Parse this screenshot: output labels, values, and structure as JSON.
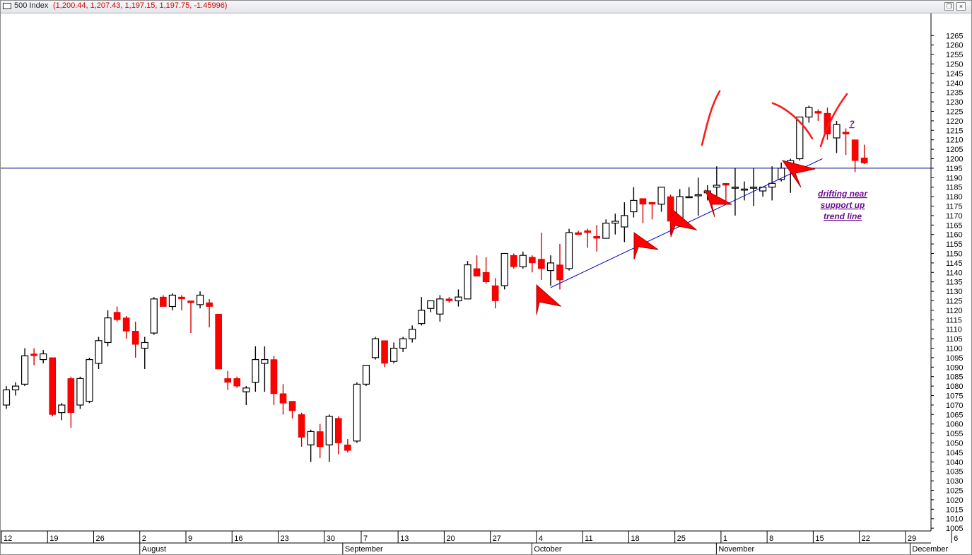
{
  "window": {
    "title_name": "500 Index",
    "title_ohlc": "(1,200.44, 1,207.43, 1,197.15, 1,197.75, -1.45996)",
    "restore_icon": "restore-icon",
    "close_icon": "close-icon",
    "restore_glyph": "❐",
    "close_glyph": "×"
  },
  "chart_data": {
    "type": "candlestick",
    "title": "500 Index",
    "ylim": [
      1000,
      1270
    ],
    "ytick_step": 5,
    "grid": false,
    "colors": {
      "up_body": "#ffffff",
      "up_line": "#000000",
      "down_body": "#ff0000",
      "down_line": "#d40000",
      "support_line": "#000080",
      "trend_line": "#0000c8",
      "annotation": "#ff0000",
      "note": "#6a0d91"
    },
    "support_level": 1195,
    "trend_line": {
      "from": {
        "date": "Oct 4",
        "value": 1132
      },
      "to": {
        "date": "Nov 12",
        "value": 1200
      }
    },
    "x_labels": [
      {
        "i": 0,
        "label": "12"
      },
      {
        "i": 5,
        "label": "19"
      },
      {
        "i": 10,
        "label": "26"
      },
      {
        "i": 15,
        "label": "2"
      },
      {
        "i": 20,
        "label": "9"
      },
      {
        "i": 25,
        "label": "16"
      },
      {
        "i": 30,
        "label": "23"
      },
      {
        "i": 35,
        "label": "30"
      },
      {
        "i": 39,
        "label": "7"
      },
      {
        "i": 43,
        "label": "13"
      },
      {
        "i": 48,
        "label": "20"
      },
      {
        "i": 53,
        "label": "27"
      },
      {
        "i": 58,
        "label": "4"
      },
      {
        "i": 63,
        "label": "11"
      },
      {
        "i": 68,
        "label": "18"
      },
      {
        "i": 73,
        "label": "25"
      },
      {
        "i": 78,
        "label": "1"
      },
      {
        "i": 83,
        "label": "8"
      },
      {
        "i": 88,
        "label": "15"
      },
      {
        "i": 93,
        "label": "22"
      },
      {
        "i": 98,
        "label": "29"
      },
      {
        "i": 103,
        "label": "6"
      }
    ],
    "months": [
      {
        "i": 15,
        "label": "August"
      },
      {
        "i": 37,
        "label": "September"
      },
      {
        "i": 57.5,
        "label": "October"
      },
      {
        "i": 77.5,
        "label": "November"
      },
      {
        "i": 98.5,
        "label": "December"
      }
    ],
    "series": [
      {
        "date": "Jul 12",
        "open": 1070,
        "high": 1080,
        "low": 1068,
        "close": 1078
      },
      {
        "date": "Jul 13",
        "open": 1078,
        "high": 1082,
        "low": 1075,
        "close": 1080
      },
      {
        "date": "Jul 14",
        "open": 1081,
        "high": 1100,
        "low": 1080,
        "close": 1096
      },
      {
        "date": "Jul 15",
        "open": 1097,
        "high": 1100,
        "low": 1091,
        "close": 1096
      },
      {
        "date": "Jul 16",
        "open": 1094,
        "high": 1099,
        "low": 1092,
        "close": 1097
      },
      {
        "date": "Jul 19",
        "open": 1095,
        "high": 1095,
        "low": 1064,
        "close": 1065
      },
      {
        "date": "Jul 20",
        "open": 1066,
        "high": 1071,
        "low": 1062,
        "close": 1070
      },
      {
        "date": "Jul 21",
        "open": 1084,
        "high": 1085,
        "low": 1058,
        "close": 1066
      },
      {
        "date": "Jul 22",
        "open": 1070,
        "high": 1085,
        "low": 1068,
        "close": 1084
      },
      {
        "date": "Jul 23",
        "open": 1072,
        "high": 1095,
        "low": 1071,
        "close": 1094
      },
      {
        "date": "Jul 26",
        "open": 1092,
        "high": 1106,
        "low": 1089,
        "close": 1104
      },
      {
        "date": "Jul 27",
        "open": 1103,
        "high": 1120,
        "low": 1101,
        "close": 1116
      },
      {
        "date": "Jul 28",
        "open": 1119,
        "high": 1122,
        "low": 1114,
        "close": 1115
      },
      {
        "date": "Jul 29",
        "open": 1116,
        "high": 1117,
        "low": 1105,
        "close": 1109
      },
      {
        "date": "Jul 30",
        "open": 1109,
        "high": 1114,
        "low": 1095,
        "close": 1102
      },
      {
        "date": "Aug 2",
        "open": 1100,
        "high": 1106,
        "low": 1089,
        "close": 1103
      },
      {
        "date": "Aug 3",
        "open": 1108,
        "high": 1127,
        "low": 1107,
        "close": 1126
      },
      {
        "date": "Aug 4",
        "open": 1127,
        "high": 1128,
        "low": 1122,
        "close": 1122
      },
      {
        "date": "Aug 5",
        "open": 1122,
        "high": 1129,
        "low": 1120,
        "close": 1128
      },
      {
        "date": "Aug 6",
        "open": 1127,
        "high": 1128,
        "low": 1120,
        "close": 1126
      },
      {
        "date": "Aug 9",
        "open": 1125,
        "high": 1125,
        "low": 1108,
        "close": 1124
      },
      {
        "date": "Aug 10",
        "open": 1123,
        "high": 1130,
        "low": 1121,
        "close": 1128
      },
      {
        "date": "Aug 11",
        "open": 1124,
        "high": 1126,
        "low": 1111,
        "close": 1122
      },
      {
        "date": "Aug 12",
        "open": 1118,
        "high": 1118,
        "low": 1089,
        "close": 1089
      },
      {
        "date": "Aug 13",
        "open": 1084,
        "high": 1088,
        "low": 1078,
        "close": 1082
      },
      {
        "date": "Aug 16",
        "open": 1084,
        "high": 1085,
        "low": 1079,
        "close": 1080
      },
      {
        "date": "Aug 17",
        "open": 1077,
        "high": 1080,
        "low": 1070,
        "close": 1079
      },
      {
        "date": "Aug 18",
        "open": 1082,
        "high": 1101,
        "low": 1077,
        "close": 1094
      },
      {
        "date": "Aug 19",
        "open": 1092,
        "high": 1101,
        "low": 1077,
        "close": 1094
      },
      {
        "date": "Aug 20",
        "open": 1094,
        "high": 1096,
        "low": 1070,
        "close": 1076
      },
      {
        "date": "Aug 23",
        "open": 1076,
        "high": 1081,
        "low": 1065,
        "close": 1071
      },
      {
        "date": "Aug 24",
        "open": 1072,
        "high": 1072,
        "low": 1063,
        "close": 1067
      },
      {
        "date": "Aug 25",
        "open": 1065,
        "high": 1066,
        "low": 1048,
        "close": 1053
      },
      {
        "date": "Aug 26",
        "open": 1049,
        "high": 1057,
        "low": 1040,
        "close": 1056
      },
      {
        "date": "Aug 27",
        "open": 1056,
        "high": 1060,
        "low": 1042,
        "close": 1048
      },
      {
        "date": "Aug 30",
        "open": 1049,
        "high": 1065,
        "low": 1040,
        "close": 1064
      },
      {
        "date": "Aug 31",
        "open": 1063,
        "high": 1064,
        "low": 1044,
        "close": 1050
      },
      {
        "date": "Sep 1",
        "open": 1049,
        "high": 1052,
        "low": 1045,
        "close": 1046
      },
      {
        "date": "Sep 2",
        "open": 1051,
        "high": 1082,
        "low": 1050,
        "close": 1081
      },
      {
        "date": "Sep 3",
        "open": 1081,
        "high": 1091,
        "low": 1080,
        "close": 1091
      },
      {
        "date": "Sep 7",
        "open": 1095,
        "high": 1106,
        "low": 1094,
        "close": 1105
      },
      {
        "date": "Sep 8",
        "open": 1104,
        "high": 1104,
        "low": 1090,
        "close": 1092
      },
      {
        "date": "Sep 9",
        "open": 1093,
        "high": 1103,
        "low": 1092,
        "close": 1100
      },
      {
        "date": "Sep 10",
        "open": 1100,
        "high": 1106,
        "low": 1098,
        "close": 1105
      },
      {
        "date": "Sep 13",
        "open": 1105,
        "high": 1112,
        "low": 1103,
        "close": 1110
      },
      {
        "date": "Sep 14",
        "open": 1113,
        "high": 1127,
        "low": 1112,
        "close": 1120
      },
      {
        "date": "Sep 15",
        "open": 1121,
        "high": 1125,
        "low": 1119,
        "close": 1125
      },
      {
        "date": "Sep 16",
        "open": 1118,
        "high": 1128,
        "low": 1114,
        "close": 1126
      },
      {
        "date": "Sep 17",
        "open": 1126,
        "high": 1127,
        "low": 1124,
        "close": 1125
      },
      {
        "date": "Sep 20",
        "open": 1125,
        "high": 1131,
        "low": 1122,
        "close": 1127
      },
      {
        "date": "Sep 21",
        "open": 1126,
        "high": 1146,
        "low": 1126,
        "close": 1144
      },
      {
        "date": "Sep 22",
        "open": 1142,
        "high": 1149,
        "low": 1138,
        "close": 1138
      },
      {
        "date": "Sep 23",
        "open": 1140,
        "high": 1148,
        "low": 1134,
        "close": 1135
      },
      {
        "date": "Sep 24",
        "open": 1133,
        "high": 1137,
        "low": 1121,
        "close": 1125
      },
      {
        "date": "Sep 27",
        "open": 1133,
        "high": 1150,
        "low": 1131,
        "close": 1150
      },
      {
        "date": "Sep 28",
        "open": 1149,
        "high": 1150,
        "low": 1142,
        "close": 1143
      },
      {
        "date": "Sep 29",
        "open": 1143,
        "high": 1151,
        "low": 1142,
        "close": 1149
      },
      {
        "date": "Sep 30",
        "open": 1148,
        "high": 1149,
        "low": 1140,
        "close": 1145
      },
      {
        "date": "Oct 1",
        "open": 1147,
        "high": 1161,
        "low": 1136,
        "close": 1142
      },
      {
        "date": "Oct 4",
        "open": 1141,
        "high": 1149,
        "low": 1133,
        "close": 1145
      },
      {
        "date": "Oct 5",
        "open": 1144,
        "high": 1155,
        "low": 1131,
        "close": 1136
      },
      {
        "date": "Oct 6",
        "open": 1142,
        "high": 1163,
        "low": 1141,
        "close": 1161
      },
      {
        "date": "Oct 7",
        "open": 1161,
        "high": 1162,
        "low": 1160,
        "close": 1160
      },
      {
        "date": "Oct 8",
        "open": 1162,
        "high": 1163,
        "low": 1153,
        "close": 1161
      },
      {
        "date": "Oct 11",
        "open": 1159,
        "high": 1165,
        "low": 1151,
        "close": 1158
      },
      {
        "date": "Oct 12",
        "open": 1158,
        "high": 1168,
        "low": 1158,
        "close": 1166
      },
      {
        "date": "Oct 13",
        "open": 1166,
        "high": 1171,
        "low": 1160,
        "close": 1167
      },
      {
        "date": "Oct 14",
        "open": 1164,
        "high": 1177,
        "low": 1156,
        "close": 1170
      },
      {
        "date": "Oct 15",
        "open": 1172,
        "high": 1185,
        "low": 1169,
        "close": 1178
      },
      {
        "date": "Oct 18",
        "open": 1179,
        "high": 1178,
        "low": 1166,
        "close": 1176
      },
      {
        "date": "Oct 19",
        "open": 1177,
        "high": 1176,
        "low": 1168,
        "close": 1176
      },
      {
        "date": "Oct 20",
        "open": 1176,
        "high": 1184,
        "low": 1172,
        "close": 1185
      },
      {
        "date": "Oct 21",
        "open": 1180,
        "high": 1181,
        "low": 1160,
        "close": 1167
      },
      {
        "date": "Oct 22",
        "open": 1168,
        "high": 1184,
        "low": 1167,
        "close": 1180
      },
      {
        "date": "Oct 25",
        "open": 1180,
        "high": 1185,
        "low": 1180,
        "close": 1180
      },
      {
        "date": "Oct 26",
        "open": 1181,
        "high": 1190,
        "low": 1170,
        "close": 1181
      },
      {
        "date": "Oct 27",
        "open": 1182,
        "high": 1186,
        "low": 1178,
        "close": 1183
      },
      {
        "date": "Oct 28",
        "open": 1185,
        "high": 1196,
        "low": 1176,
        "close": 1186
      },
      {
        "date": "Oct 29",
        "open": 1187,
        "high": 1186,
        "low": 1177,
        "close": 1186
      },
      {
        "date": "Nov 1",
        "open": 1185,
        "high": 1195,
        "low": 1170,
        "close": 1185
      },
      {
        "date": "Nov 2",
        "open": 1184,
        "high": 1188,
        "low": 1178,
        "close": 1184
      },
      {
        "date": "Nov 3",
        "open": 1185,
        "high": 1195,
        "low": 1175,
        "close": 1185
      },
      {
        "date": "Nov 4",
        "open": 1183,
        "high": 1185,
        "low": 1180,
        "close": 1185
      },
      {
        "date": "Nov 5",
        "open": 1185,
        "high": 1196,
        "low": 1178,
        "close": 1187
      },
      {
        "date": "Nov 8",
        "open": 1189,
        "high": 1198,
        "low": 1188,
        "close": 1195
      },
      {
        "date": "Nov 9",
        "open": 1196,
        "high": 1200,
        "low": 1182,
        "close": 1199
      },
      {
        "date": "Nov 10",
        "open": 1200,
        "high": 1222,
        "low": 1199,
        "close": 1222
      },
      {
        "date": "Nov 11",
        "open": 1222,
        "high": 1228,
        "low": 1219,
        "close": 1227
      },
      {
        "date": "Nov 12",
        "open": 1225,
        "high": 1226,
        "low": 1220,
        "close": 1224
      },
      {
        "date": "Nov 15",
        "open": 1224,
        "high": 1227,
        "low": 1210,
        "close": 1213
      },
      {
        "date": "Nov 16",
        "open": 1211,
        "high": 1220,
        "low": 1203,
        "close": 1218
      },
      {
        "date": "Nov 17",
        "open": 1214,
        "high": 1216,
        "low": 1202,
        "close": 1213
      },
      {
        "date": "Nov 18",
        "open": 1210,
        "high": 1210,
        "low": 1193,
        "close": 1199
      },
      {
        "date": "Nov 19",
        "open": 1200.44,
        "high": 1207.43,
        "low": 1197.15,
        "close": 1197.75
      }
    ],
    "annotations": [
      {
        "text": "drifting near",
        "date": "Nov 18",
        "value": 1177
      },
      {
        "text": "support up",
        "date": "Nov 18",
        "value": 1171
      },
      {
        "text": "trend line",
        "date": "Nov 18",
        "value": 1165
      },
      {
        "text": "?",
        "date": "Nov 22",
        "value": 1211
      }
    ]
  }
}
